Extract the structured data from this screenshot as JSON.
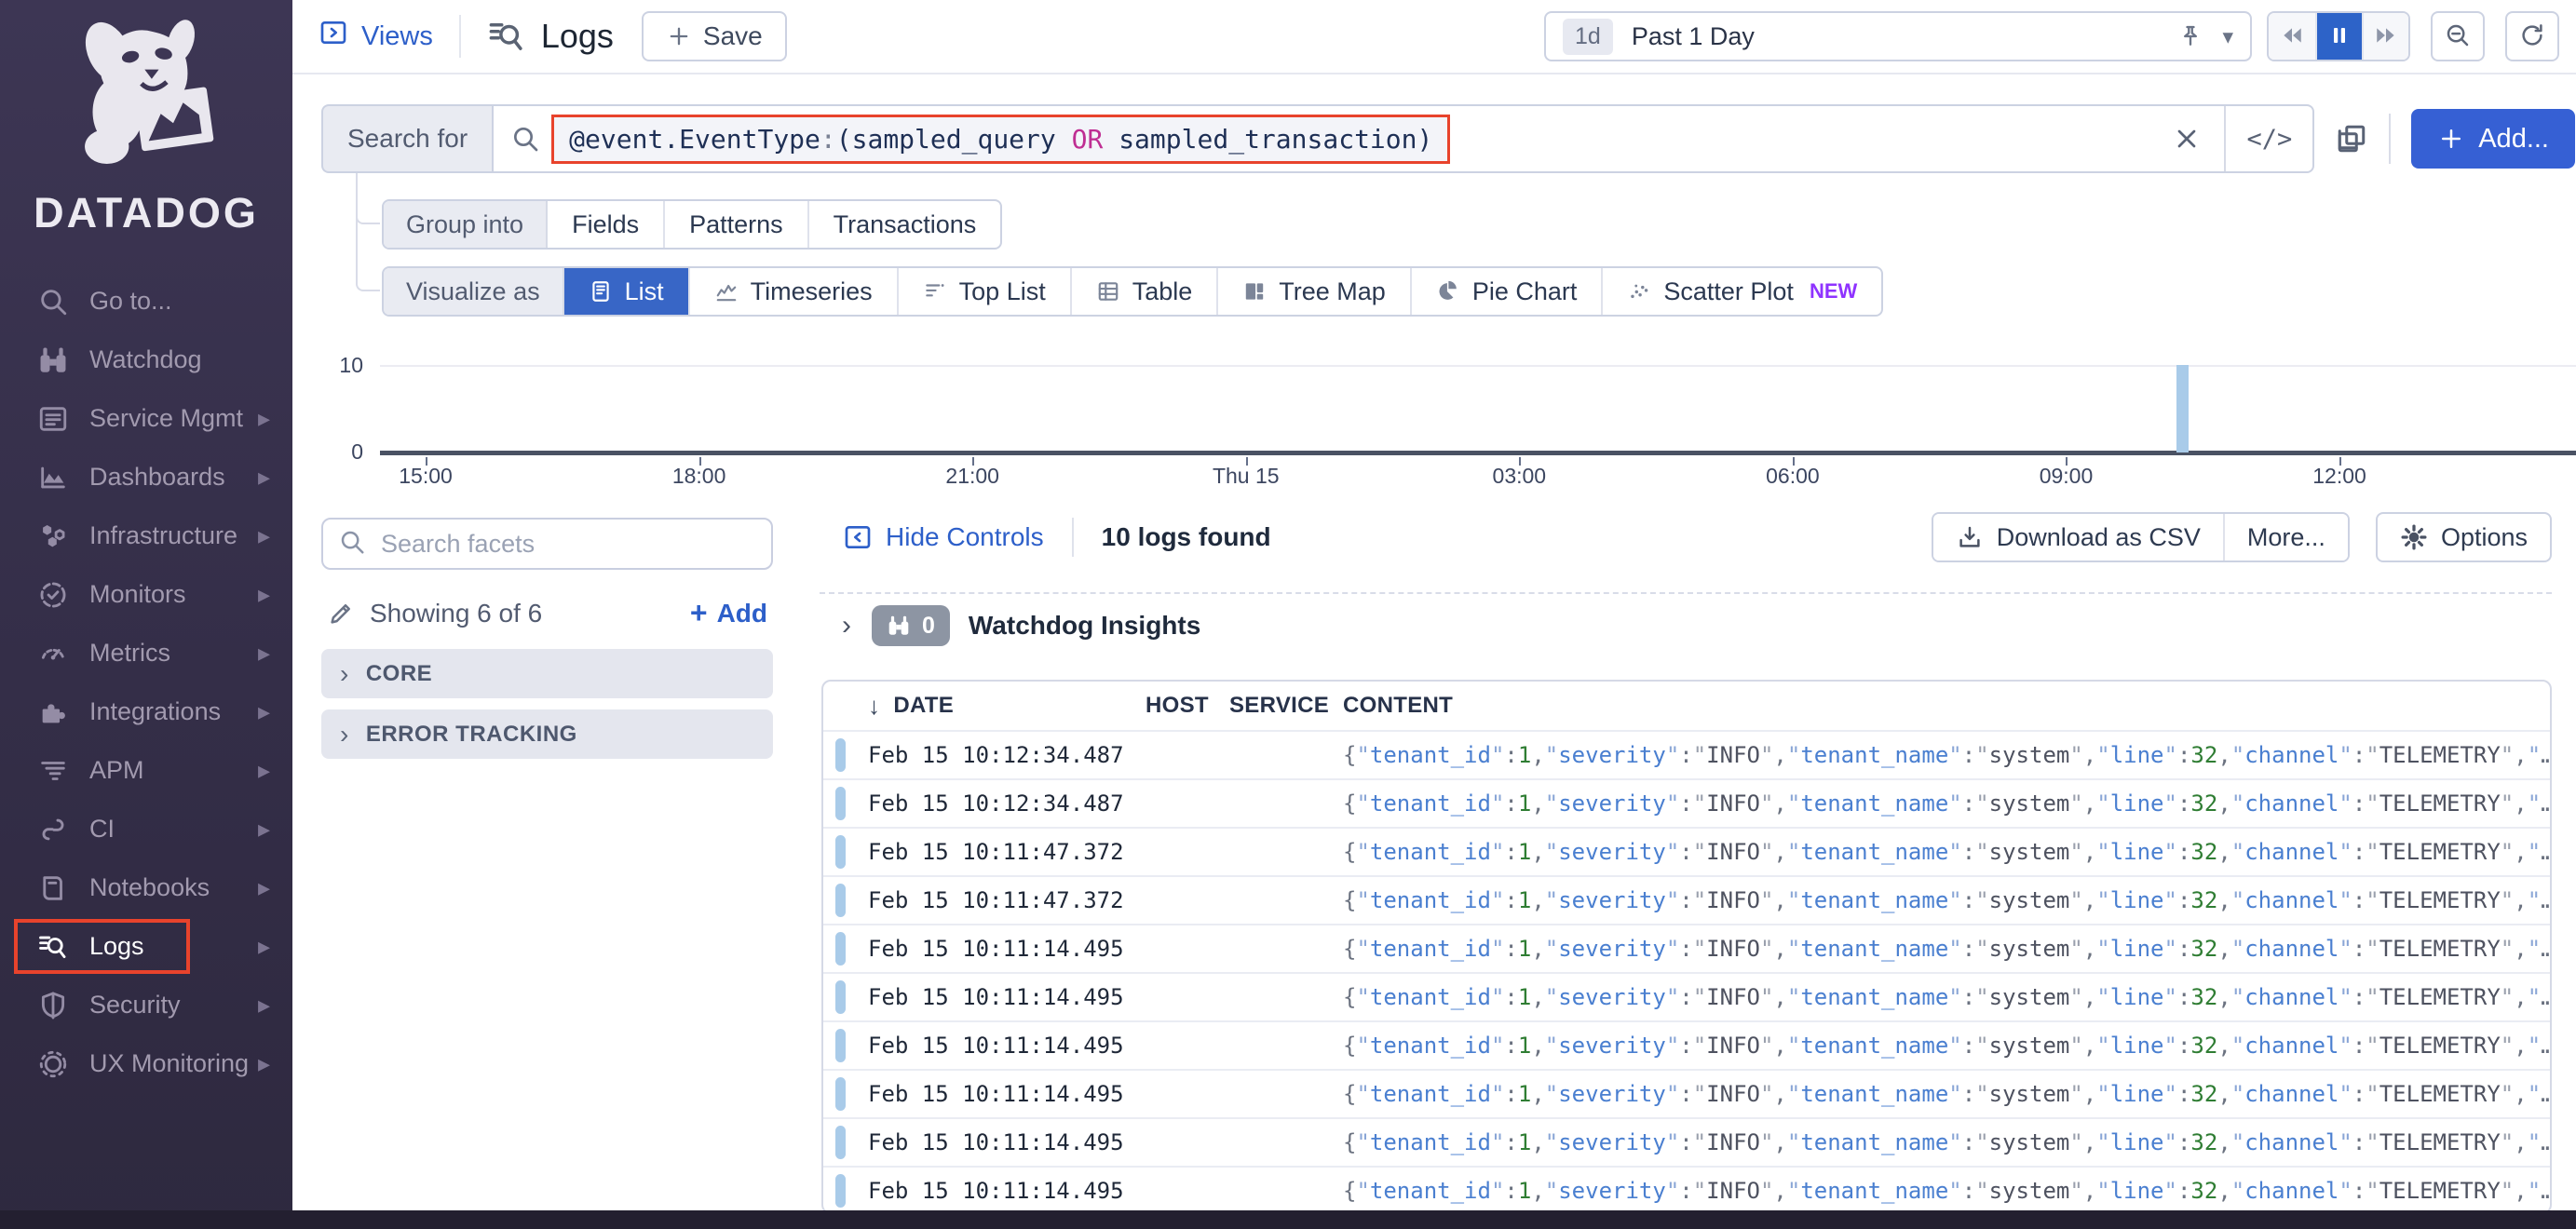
{
  "colors": {
    "sidebar_bg": "#37304a",
    "accent_orange": "#e8432c",
    "accent_blue": "#3866c6",
    "link_blue": "#2d5fc9",
    "add_button_blue": "#3660d4",
    "bar_blue": "#a9cbe9",
    "operator_magenta": "#bf2e93",
    "json_key_blue": "#4a7fd0",
    "json_number_green": "#2f7d33",
    "new_badge_purple": "#8f33ff"
  },
  "sidebar": {
    "logo_text": "DATADOG",
    "items": [
      {
        "label": "Go to...",
        "icon": "search",
        "chevron": false,
        "active": false
      },
      {
        "label": "Watchdog",
        "icon": "binoculars",
        "chevron": false,
        "active": false
      },
      {
        "label": "Service Mgmt",
        "icon": "service-mgmt",
        "chevron": true,
        "active": false
      },
      {
        "label": "Dashboards",
        "icon": "dashboards",
        "chevron": true,
        "active": false
      },
      {
        "label": "Infrastructure",
        "icon": "infrastructure",
        "chevron": true,
        "active": false
      },
      {
        "label": "Monitors",
        "icon": "monitors",
        "chevron": true,
        "active": false
      },
      {
        "label": "Metrics",
        "icon": "metrics",
        "chevron": true,
        "active": false
      },
      {
        "label": "Integrations",
        "icon": "integrations",
        "chevron": true,
        "active": false
      },
      {
        "label": "APM",
        "icon": "apm",
        "chevron": true,
        "active": false
      },
      {
        "label": "CI",
        "icon": "ci",
        "chevron": true,
        "active": false
      },
      {
        "label": "Notebooks",
        "icon": "notebooks",
        "chevron": true,
        "active": false
      },
      {
        "label": "Logs",
        "icon": "logs",
        "chevron": true,
        "active": true
      },
      {
        "label": "Security",
        "icon": "security",
        "chevron": true,
        "active": false
      },
      {
        "label": "UX Monitoring",
        "icon": "ux-monitoring",
        "chevron": true,
        "active": false
      }
    ]
  },
  "topbar": {
    "views_label": "Views",
    "page_title": "Logs",
    "save_label": "Save",
    "time_range": {
      "badge": "1d",
      "label": "Past 1 Day"
    }
  },
  "search_bar": {
    "label": "Search for",
    "query_parts": [
      {
        "text": "@event.EventType",
        "type": "field"
      },
      {
        "text": ":",
        "type": "punct"
      },
      {
        "text": "(",
        "type": "field"
      },
      {
        "text": "sampled_query",
        "type": "field"
      },
      {
        "text": " OR ",
        "type": "op"
      },
      {
        "text": "sampled_transaction",
        "type": "field"
      },
      {
        "text": ")",
        "type": "field"
      }
    ],
    "code_toggle_label": "</>",
    "add_button_label": "Add..."
  },
  "query_toolbar": {
    "group_into": {
      "label": "Group into",
      "tabs": [
        "Fields",
        "Patterns",
        "Transactions"
      ]
    },
    "visualize_as": {
      "label": "Visualize as",
      "tabs": [
        {
          "label": "List",
          "icon": "list-viz",
          "active": true
        },
        {
          "label": "Timeseries",
          "icon": "timeseries-viz",
          "active": false
        },
        {
          "label": "Top List",
          "icon": "top-list-viz",
          "active": false
        },
        {
          "label": "Table",
          "icon": "table-viz",
          "active": false
        },
        {
          "label": "Tree Map",
          "icon": "tree-map-viz",
          "active": false
        },
        {
          "label": "Pie Chart",
          "icon": "pie-chart-viz",
          "active": false
        },
        {
          "label": "Scatter Plot",
          "icon": "scatter-plot-viz",
          "active": false,
          "badge": "NEW"
        }
      ]
    }
  },
  "chart_data": {
    "type": "bar",
    "x_ticks": [
      "15:00",
      "18:00",
      "21:00",
      "Thu 15",
      "03:00",
      "06:00",
      "09:00",
      "12:00"
    ],
    "y_ticks": [
      0,
      10
    ],
    "ylim": [
      0,
      10
    ],
    "grid": "top gridline only",
    "bars": [
      {
        "label": "Thu 15 ~10:10",
        "value": 10,
        "x_frac": 0.818
      }
    ]
  },
  "controls_row": {
    "hide_controls": "Hide Controls",
    "logs_found": "10 logs found",
    "download_csv": "Download as CSV",
    "more": "More...",
    "options": "Options"
  },
  "facets": {
    "search_placeholder": "Search facets",
    "showing": "Showing 6 of 6",
    "add_label": "Add",
    "groups": [
      "CORE",
      "ERROR TRACKING"
    ]
  },
  "insights": {
    "badge_count": "0",
    "title": "Watchdog Insights"
  },
  "log_table": {
    "columns": [
      "DATE",
      "HOST",
      "SERVICE",
      "CONTENT"
    ],
    "sort_column": "DATE",
    "row_content": {
      "pairs": [
        {
          "key": "tenant_id",
          "value": "1",
          "type": "num"
        },
        {
          "key": "severity",
          "value": "INFO",
          "type": "str"
        },
        {
          "key": "tenant_name",
          "value": "system",
          "type": "str"
        },
        {
          "key": "line",
          "value": "32",
          "type": "num"
        },
        {
          "key": "channel",
          "value": "TELEMETRY",
          "type": "str"
        }
      ],
      "truncated": true
    },
    "rows": [
      {
        "date": "Feb 15 10:12:34.487"
      },
      {
        "date": "Feb 15 10:12:34.487"
      },
      {
        "date": "Feb 15 10:11:47.372"
      },
      {
        "date": "Feb 15 10:11:47.372"
      },
      {
        "date": "Feb 15 10:11:14.495"
      },
      {
        "date": "Feb 15 10:11:14.495"
      },
      {
        "date": "Feb 15 10:11:14.495"
      },
      {
        "date": "Feb 15 10:11:14.495"
      },
      {
        "date": "Feb 15 10:11:14.495"
      },
      {
        "date": "Feb 15 10:11:14.495"
      }
    ]
  }
}
